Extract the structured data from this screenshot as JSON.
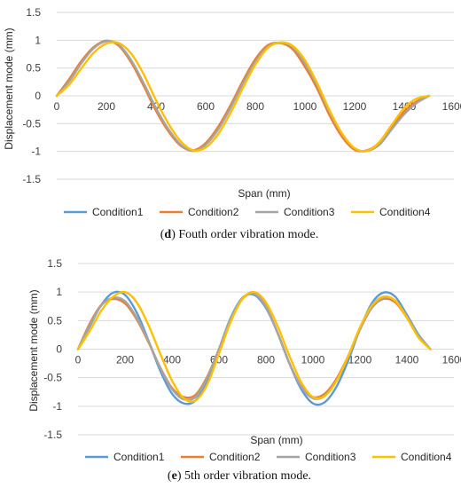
{
  "chart_data": [
    {
      "type": "line",
      "caption_label": "d",
      "caption_text": " Fouth order vibration mode.",
      "xlabel": "Span (mm)",
      "ylabel": "Displacement mode (mm)",
      "xlim": [
        0,
        1600
      ],
      "ylim": [
        -1.5,
        1.5
      ],
      "x_ticks": [
        "0",
        "200",
        "400",
        "600",
        "800",
        "1000",
        "1200",
        "1400",
        "1600"
      ],
      "y_ticks": [
        "1.5",
        "1",
        "0.5",
        "0",
        "-0.5",
        "-1",
        "-1.5"
      ],
      "grid": "horizontal",
      "legend_position": "bottom",
      "series": [
        {
          "name": "Condition1",
          "color": "#5b9bd5",
          "x": [
            0,
            50,
            100,
            150,
            200,
            250,
            300,
            350,
            400,
            450,
            500,
            550,
            600,
            650,
            700,
            750,
            800,
            850,
            900,
            950,
            1000,
            1050,
            1100,
            1150,
            1200,
            1250,
            1300,
            1350,
            1400,
            1450,
            1500
          ],
          "values": [
            0.0,
            0.28,
            0.61,
            0.87,
            0.99,
            0.91,
            0.62,
            0.2,
            -0.25,
            -0.62,
            -0.89,
            -0.99,
            -0.87,
            -0.59,
            -0.2,
            0.24,
            0.63,
            0.89,
            0.95,
            0.87,
            0.56,
            0.16,
            -0.32,
            -0.71,
            -0.96,
            -0.99,
            -0.87,
            -0.58,
            -0.31,
            -0.12,
            0.0
          ]
        },
        {
          "name": "Condition2",
          "color": "#ed7d31",
          "x": [
            0,
            50,
            100,
            150,
            200,
            250,
            300,
            350,
            400,
            450,
            500,
            550,
            600,
            650,
            700,
            750,
            800,
            850,
            900,
            950,
            1000,
            1050,
            1100,
            1150,
            1200,
            1250,
            1300,
            1350,
            1400,
            1450,
            1500
          ],
          "values": [
            0.0,
            0.3,
            0.63,
            0.88,
            0.99,
            0.9,
            0.6,
            0.18,
            -0.27,
            -0.64,
            -0.9,
            -0.98,
            -0.85,
            -0.56,
            -0.17,
            0.27,
            0.66,
            0.91,
            0.95,
            0.84,
            0.52,
            0.12,
            -0.36,
            -0.74,
            -0.97,
            -0.98,
            -0.84,
            -0.55,
            -0.28,
            -0.1,
            0.0
          ]
        },
        {
          "name": "Condition3",
          "color": "#a5a5a5",
          "x": [
            0,
            50,
            100,
            150,
            200,
            250,
            300,
            350,
            400,
            450,
            500,
            550,
            600,
            650,
            700,
            750,
            800,
            850,
            900,
            950,
            1000,
            1050,
            1100,
            1150,
            1200,
            1250,
            1300,
            1350,
            1400,
            1450,
            1500
          ],
          "values": [
            0.0,
            0.26,
            0.59,
            0.86,
            0.98,
            0.92,
            0.64,
            0.23,
            -0.22,
            -0.6,
            -0.88,
            -0.99,
            -0.88,
            -0.61,
            -0.22,
            0.22,
            0.61,
            0.88,
            0.95,
            0.88,
            0.58,
            0.18,
            -0.3,
            -0.69,
            -0.95,
            -0.99,
            -0.88,
            -0.6,
            -0.33,
            -0.13,
            0.0
          ]
        },
        {
          "name": "Condition4",
          "color": "#ffc000",
          "x": [
            0,
            50,
            100,
            150,
            200,
            250,
            300,
            350,
            400,
            450,
            500,
            550,
            600,
            650,
            700,
            750,
            800,
            850,
            900,
            950,
            1000,
            1050,
            1100,
            1150,
            1200,
            1250,
            1300,
            1350,
            1400,
            1450,
            1500
          ],
          "values": [
            0.0,
            0.2,
            0.5,
            0.78,
            0.94,
            0.95,
            0.76,
            0.39,
            -0.08,
            -0.5,
            -0.82,
            -0.98,
            -0.93,
            -0.69,
            -0.31,
            0.14,
            0.56,
            0.86,
            0.96,
            0.9,
            0.64,
            0.22,
            -0.27,
            -0.68,
            -0.94,
            -0.99,
            -0.83,
            -0.52,
            -0.22,
            -0.05,
            0.0
          ]
        }
      ]
    },
    {
      "type": "line",
      "caption_label": "e",
      "caption_text": " 5th order vibration mode.",
      "xlabel": "Span (mm)",
      "ylabel": "Displacement mode (mm)",
      "xlim": [
        0,
        1600
      ],
      "ylim": [
        -1.5,
        1.5
      ],
      "x_ticks": [
        "0",
        "200",
        "400",
        "600",
        "800",
        "1000",
        "1200",
        "1400",
        "1600"
      ],
      "y_ticks": [
        "1.5",
        "1",
        "0.5",
        "0",
        "-0.5",
        "-1",
        "-1.5"
      ],
      "grid": "horizontal",
      "legend_position": "bottom",
      "series": [
        {
          "name": "Condition1",
          "color": "#5b9bd5",
          "x": [
            0,
            50,
            100,
            150,
            200,
            250,
            300,
            350,
            400,
            450,
            500,
            550,
            600,
            650,
            700,
            750,
            800,
            850,
            900,
            950,
            1000,
            1050,
            1100,
            1150,
            1200,
            1250,
            1300,
            1350,
            1400,
            1450,
            1500
          ],
          "values": [
            0.0,
            0.4,
            0.78,
            0.99,
            0.95,
            0.64,
            0.15,
            -0.38,
            -0.78,
            -0.95,
            -0.9,
            -0.55,
            0.0,
            0.55,
            0.9,
            0.95,
            0.72,
            0.28,
            -0.25,
            -0.7,
            -0.95,
            -0.93,
            -0.66,
            -0.2,
            0.35,
            0.8,
            0.99,
            0.92,
            0.6,
            0.25,
            0.0
          ]
        },
        {
          "name": "Condition2",
          "color": "#ed7d31",
          "x": [
            0,
            50,
            100,
            150,
            200,
            250,
            300,
            350,
            400,
            450,
            500,
            550,
            600,
            650,
            700,
            750,
            800,
            850,
            900,
            950,
            1000,
            1050,
            1100,
            1150,
            1200,
            1250,
            1300,
            1350,
            1400,
            1450,
            1500
          ],
          "values": [
            0.0,
            0.45,
            0.78,
            0.88,
            0.8,
            0.52,
            0.12,
            -0.32,
            -0.68,
            -0.84,
            -0.8,
            -0.48,
            0.0,
            0.52,
            0.88,
            0.98,
            0.75,
            0.28,
            -0.25,
            -0.65,
            -0.84,
            -0.78,
            -0.52,
            -0.12,
            0.35,
            0.72,
            0.88,
            0.82,
            0.55,
            0.22,
            0.0
          ]
        },
        {
          "name": "Condition3",
          "color": "#a5a5a5",
          "x": [
            0,
            50,
            100,
            150,
            200,
            250,
            300,
            350,
            400,
            450,
            500,
            550,
            600,
            650,
            700,
            750,
            800,
            850,
            900,
            950,
            1000,
            1050,
            1100,
            1150,
            1200,
            1250,
            1300,
            1350,
            1400,
            1450,
            1500
          ],
          "values": [
            0.0,
            0.42,
            0.77,
            0.9,
            0.84,
            0.55,
            0.14,
            -0.33,
            -0.7,
            -0.88,
            -0.84,
            -0.5,
            0.0,
            0.53,
            0.89,
            0.97,
            0.74,
            0.28,
            -0.25,
            -0.66,
            -0.86,
            -0.82,
            -0.55,
            -0.14,
            0.34,
            0.72,
            0.9,
            0.85,
            0.57,
            0.23,
            0.0
          ]
        },
        {
          "name": "Condition4",
          "color": "#ffc000",
          "x": [
            0,
            50,
            100,
            150,
            200,
            250,
            300,
            350,
            400,
            450,
            500,
            550,
            600,
            650,
            700,
            750,
            800,
            850,
            900,
            950,
            1000,
            1050,
            1100,
            1150,
            1200,
            1250,
            1300,
            1350,
            1400,
            1450,
            1500
          ],
          "values": [
            0.0,
            0.32,
            0.68,
            0.92,
            1.0,
            0.82,
            0.42,
            -0.08,
            -0.55,
            -0.86,
            -0.9,
            -0.62,
            -0.08,
            0.48,
            0.88,
            1.0,
            0.82,
            0.4,
            -0.12,
            -0.58,
            -0.84,
            -0.82,
            -0.56,
            -0.12,
            0.38,
            0.76,
            0.92,
            0.85,
            0.55,
            0.2,
            0.0
          ]
        }
      ]
    }
  ]
}
